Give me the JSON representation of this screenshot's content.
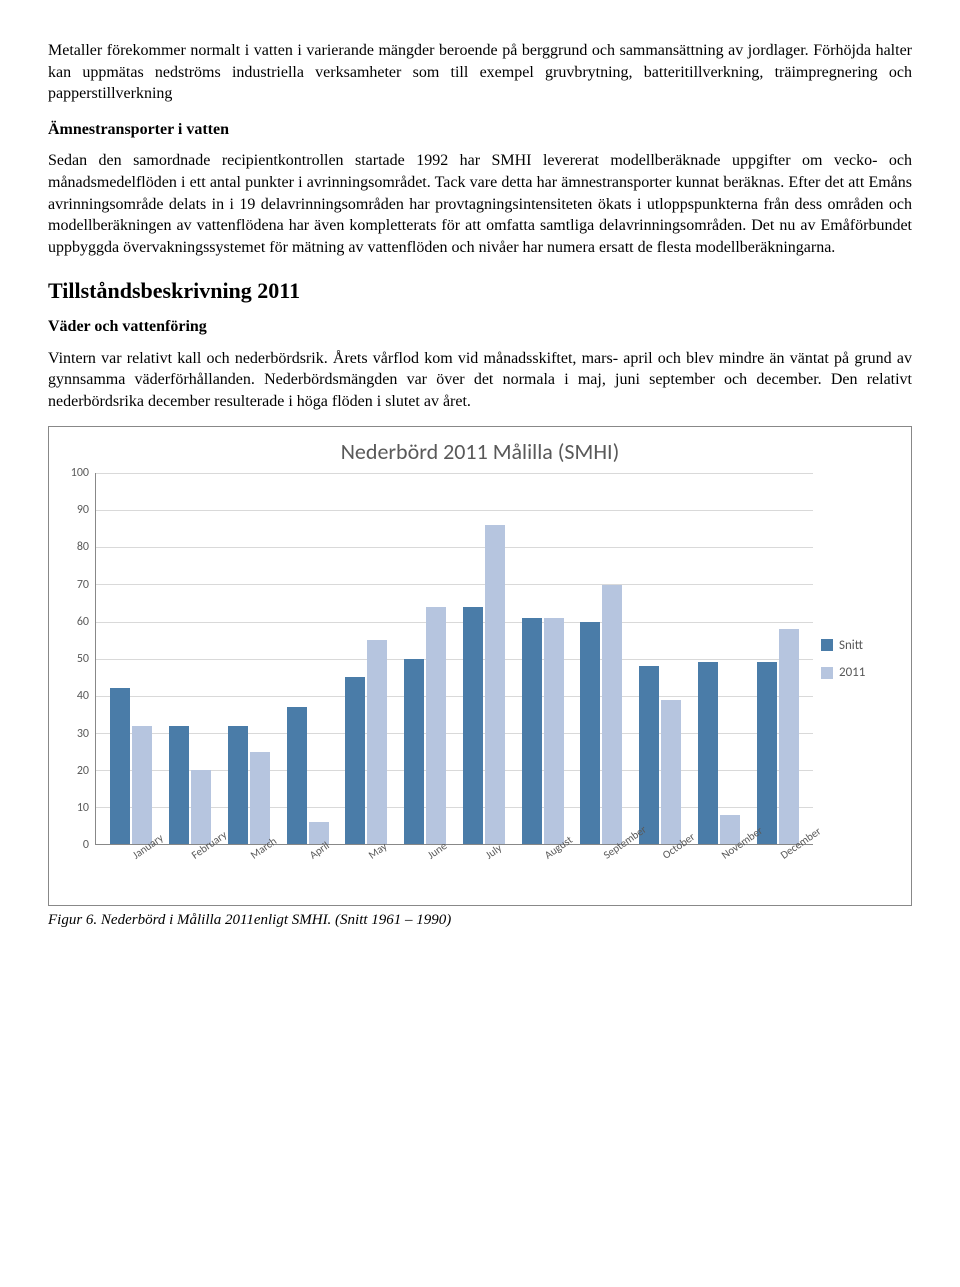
{
  "para1": "Metaller förekommer normalt i vatten i varierande mängder beroende på berggrund och sammansättning av jordlager. Förhöjda halter kan uppmätas nedströms industriella verksamheter som till exempel gruvbrytning, batteritillverkning, träimpregnering och papperstillverkning",
  "heading1": "Ämnestransporter i vatten",
  "para2": "Sedan den samordnade recipientkontrollen startade 1992 har SMHI levererat modellberäknade uppgifter om vecko- och månadsmedelflöden i ett antal punkter i avrinningsområdet. Tack vare detta har ämnestransporter kunnat beräknas. Efter det att Emåns avrinningsområde delats in i 19 delavrinningsområden har provtagningsintensiteten ökats i utloppspunkterna från dess områden och modellberäkningen av vattenflödena har även kompletterats för att omfatta samtliga delavrinningsområden. Det nu av Emåförbundet uppbyggda övervakningssystemet för mätning av vattenflöden och nivåer har numera ersatt de flesta modellberäkningarna.",
  "heading2": "Tillståndsbeskrivning 2011",
  "heading3": "Väder och vattenföring",
  "para3": "Vintern var relativt kall och nederbördsrik. Årets vårflod kom vid månadsskiftet, mars- april och blev mindre än väntat på grund av gynnsamma väderförhållanden. Nederbördsmängden var över det normala i maj, juni september och december. Den relativt nederbördsrika december resulterade i höga flöden i slutet av året.",
  "chart": {
    "type": "bar",
    "title": "Nederbörd 2011 Målilla (SMHI)",
    "title_fontsize": 22,
    "title_color": "#595959",
    "categories": [
      "January",
      "February",
      "March",
      "April",
      "May",
      "June",
      "July",
      "August",
      "September",
      "October",
      "November",
      "December"
    ],
    "series": [
      {
        "name": "Snitt",
        "color": "#4a7ca8",
        "values": [
          42,
          32,
          32,
          37,
          45,
          50,
          64,
          61,
          60,
          48,
          49,
          49
        ]
      },
      {
        "name": "2011",
        "color": "#b6c5df",
        "values": [
          32,
          20,
          25,
          6,
          55,
          64,
          86,
          61,
          70,
          39,
          8,
          58
        ]
      }
    ],
    "ylim": [
      0,
      100
    ],
    "ytick_step": 10,
    "grid_color": "#d9d9d9",
    "axis_color": "#888888",
    "background_color": "#ffffff",
    "label_fontsize": 12,
    "label_color": "#595959",
    "font_family": "Calibri"
  },
  "caption": "Figur 6. Nederbörd i Målilla 2011enligt SMHI. (Snitt 1961 – 1990)"
}
